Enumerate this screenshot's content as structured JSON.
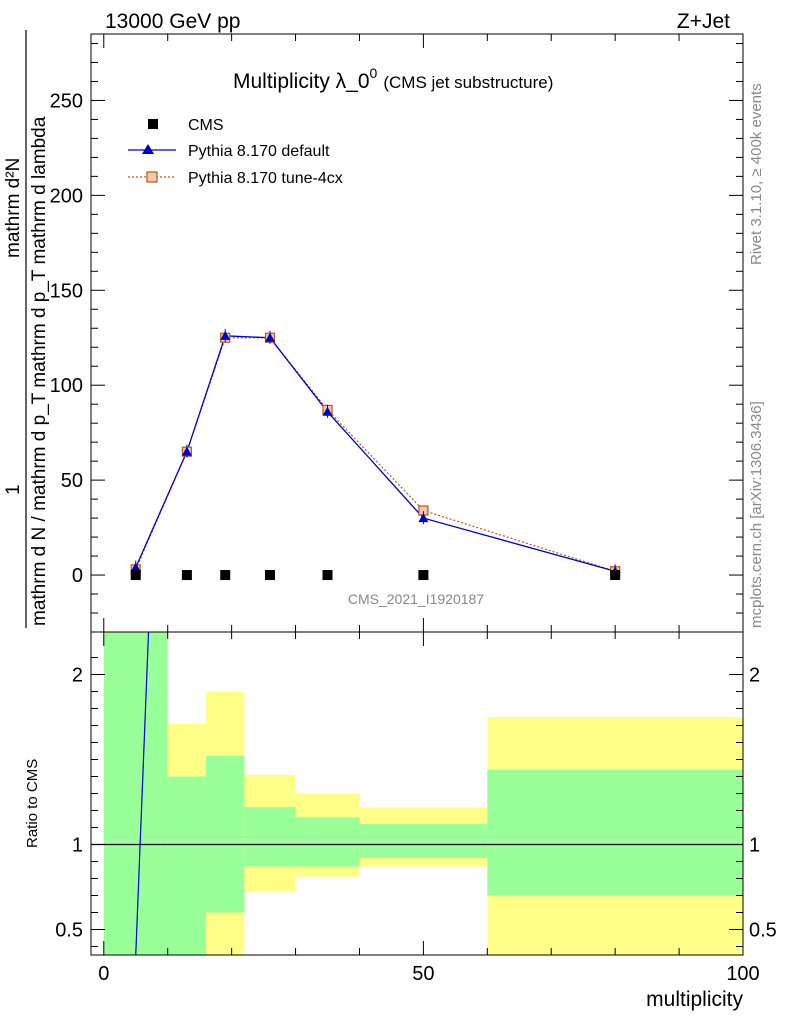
{
  "header": {
    "left": "13000 GeV pp",
    "right": "Z+Jet"
  },
  "side_labels": {
    "rivet": "Rivet 3.1.10, ≥ 400k events",
    "mcplots": "mcplots.cern.ch [arXiv:1306.3436]"
  },
  "chart_data": [
    {
      "type": "line",
      "title_main": "Multiplicity λ_0",
      "title_sup": "0",
      "title_sub": "(CMS jet substructure)",
      "watermark": "CMS_2021_I1920187",
      "ylabel_num": "mathrm d²N",
      "ylabel_den": "mathrm d N / mathrm d p_T mathrm d p_T mathrm d lambda",
      "ylabel_one": "1",
      "xlim": [
        -2,
        100
      ],
      "ylim": [
        -30,
        285
      ],
      "yticks": [
        0,
        50,
        100,
        150,
        200,
        250
      ],
      "ytick_labels": [
        "0",
        "50",
        "100",
        "150",
        "200",
        "250"
      ],
      "legend": [
        "CMS",
        "Pythia 8.170 default",
        "Pythia 8.170 tune-4cx"
      ],
      "legend_position": "top-left",
      "colors": {
        "data": "#000000",
        "default": "#0000cc",
        "tune": "#b35a1f"
      },
      "series": [
        {
          "name": "CMS",
          "x": [
            5,
            13,
            19,
            26,
            35,
            50,
            80
          ],
          "values": [
            0,
            0,
            0,
            0,
            0,
            0,
            0
          ]
        },
        {
          "name": "Pythia 8.170 default",
          "x": [
            5,
            13,
            19,
            26,
            35,
            50,
            80
          ],
          "values": [
            4,
            65,
            126,
            125,
            86,
            30,
            2
          ]
        },
        {
          "name": "Pythia 8.170 tune-4cx",
          "x": [
            5,
            13,
            19,
            26,
            35,
            50,
            80
          ],
          "values": [
            3,
            65,
            125,
            125,
            87,
            34,
            2
          ]
        }
      ]
    },
    {
      "type": "area",
      "ylabel": "Ratio to CMS",
      "xlabel": "multiplicity",
      "xlim": [
        -2,
        100
      ],
      "ylim": [
        0.35,
        2.25
      ],
      "xticks": [
        0,
        50,
        100
      ],
      "xtick_labels": [
        "0",
        "50",
        "100"
      ],
      "yticks": [
        0.5,
        1,
        2
      ],
      "ytick_labels": [
        "0.5",
        "1",
        "2"
      ],
      "colors": {
        "inner": "#99ff99",
        "outer": "#ffff88",
        "line": "#0000cc"
      },
      "bins": [
        {
          "x0": 0,
          "x1": 10,
          "inner": [
            0.35,
            2.25
          ],
          "outer": [
            0.35,
            2.25
          ]
        },
        {
          "x0": 10,
          "x1": 16,
          "inner": [
            0.35,
            1.4
          ],
          "outer": [
            0.35,
            1.71
          ]
        },
        {
          "x0": 16,
          "x1": 22,
          "inner": [
            0.6,
            1.52
          ],
          "outer": [
            0.35,
            1.9
          ]
        },
        {
          "x0": 22,
          "x1": 30,
          "inner": [
            0.87,
            1.22
          ],
          "outer": [
            0.72,
            1.41
          ]
        },
        {
          "x0": 30,
          "x1": 40,
          "inner": [
            0.87,
            1.16
          ],
          "outer": [
            0.81,
            1.3
          ]
        },
        {
          "x0": 40,
          "x1": 60,
          "inner": [
            0.92,
            1.12
          ],
          "outer": [
            0.87,
            1.22
          ]
        },
        {
          "x0": 60,
          "x1": 100,
          "inner": [
            0.7,
            1.44
          ],
          "outer": [
            0.35,
            1.75
          ]
        }
      ],
      "ratio_line": {
        "x": [
          5,
          7
        ],
        "values": [
          0.35,
          2.25
        ]
      }
    }
  ]
}
